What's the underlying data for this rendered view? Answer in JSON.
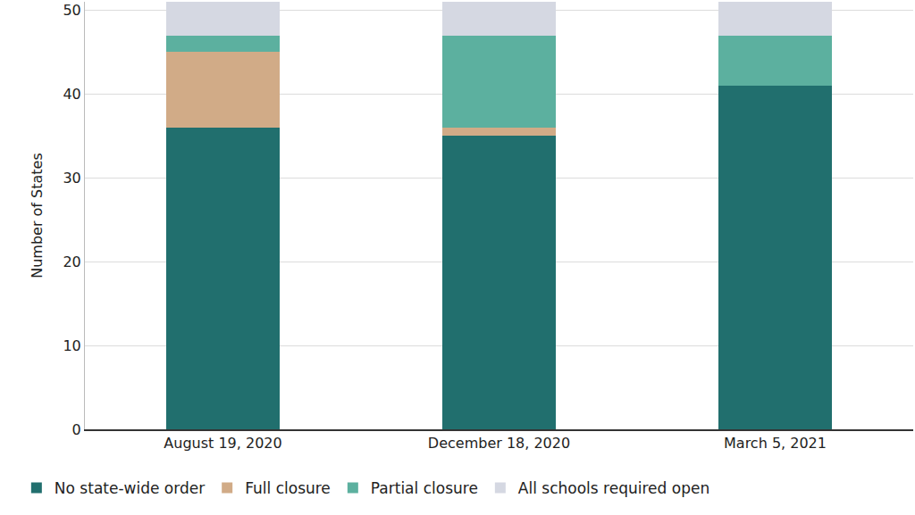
{
  "chart_data": {
    "type": "bar",
    "stacked": true,
    "grid": true,
    "legend": "bottom",
    "y_label": "Number of States",
    "categories": [
      "August 19, 2020",
      "December 18, 2020",
      "March 5, 2021"
    ],
    "series": [
      {
        "name": "No state-wide order",
        "color": "#216f6e",
        "values": [
          36,
          35,
          41
        ]
      },
      {
        "name": "Full closure",
        "color": "#d1ab87",
        "values": [
          9,
          1,
          0
        ]
      },
      {
        "name": "Partial closure",
        "color": "#5cb09f",
        "values": [
          2,
          11,
          6
        ]
      },
      {
        "name": "All schools required open",
        "color": "#d5d8e2",
        "values": [
          4,
          4,
          4
        ]
      }
    ],
    "ylim": [
      0,
      51
    ],
    "yticks": [
      0,
      10,
      20,
      30,
      40,
      50
    ]
  }
}
